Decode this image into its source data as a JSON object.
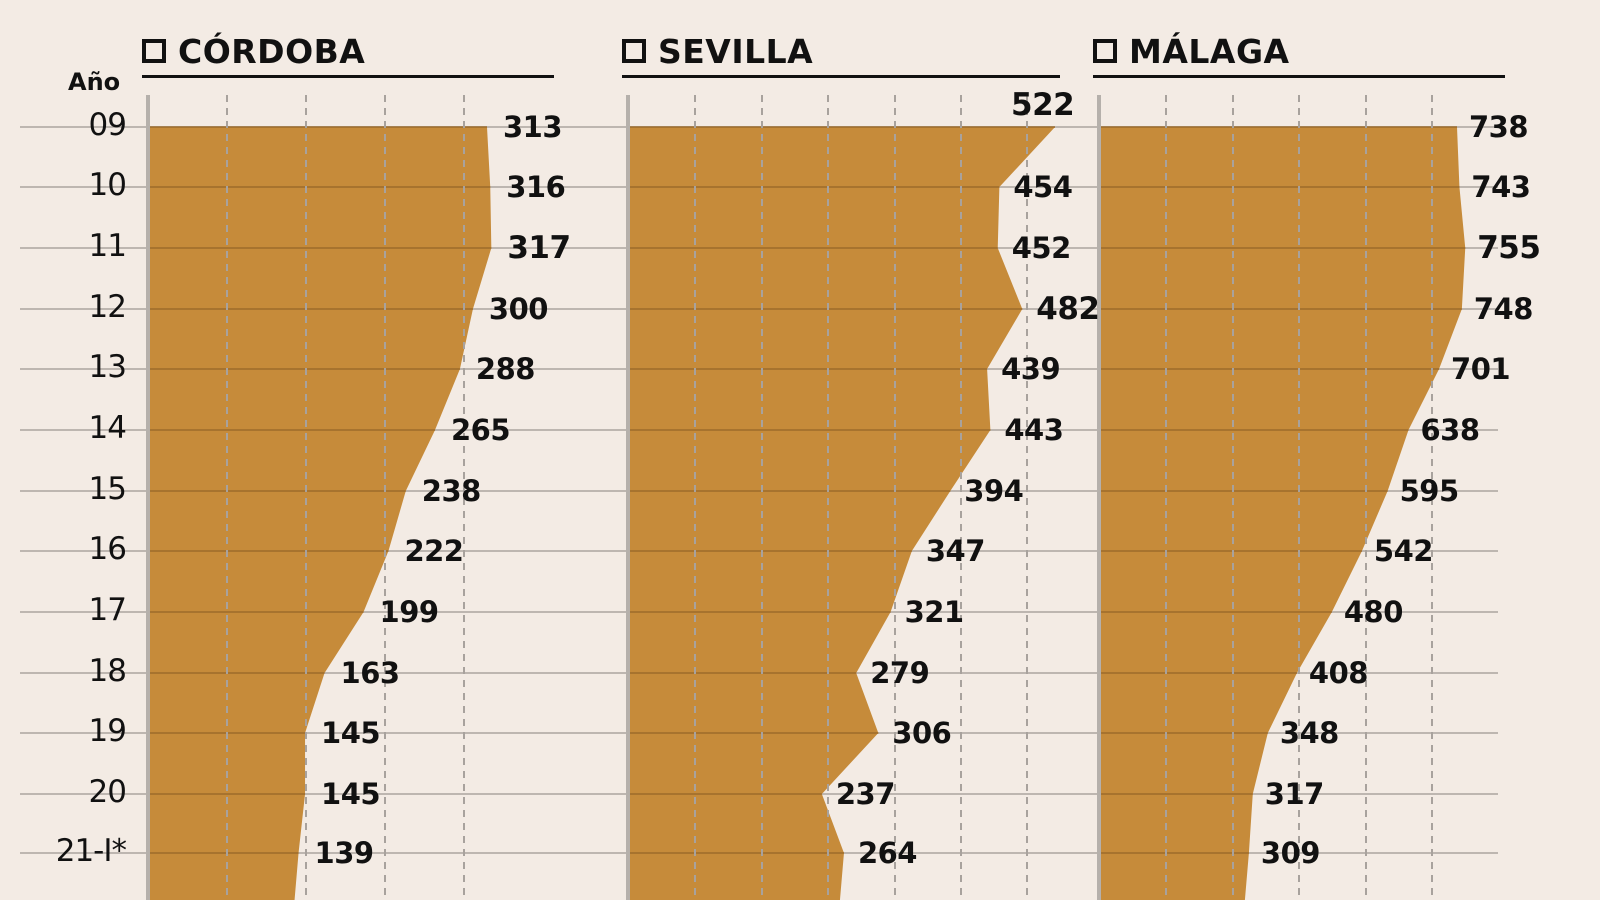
{
  "header": {
    "year_label": "Año"
  },
  "years": [
    "09",
    "10",
    "11",
    "12",
    "13",
    "14",
    "15",
    "16",
    "17",
    "18",
    "19",
    "20",
    "21-I*"
  ],
  "colors": {
    "background": "#f3ebe4",
    "area_fill": "#c68b3a",
    "grid_solid": "#bdb6b0",
    "grid_dashed": "#a8a29d",
    "axis": "#b5b0ab",
    "text": "#111111"
  },
  "chart_data": [
    {
      "type": "area",
      "title": "CÓRDOBA",
      "orientation": "horizontal",
      "categories": [
        "09",
        "10",
        "11",
        "12",
        "13",
        "14",
        "15",
        "16",
        "17",
        "18",
        "19",
        "20",
        "21-I*"
      ],
      "values": [
        313,
        316,
        317,
        300,
        288,
        265,
        238,
        222,
        199,
        163,
        145,
        145,
        139
      ],
      "highlight": [
        2
      ],
      "ylabel": "Año",
      "grid": "dashed-vertical"
    },
    {
      "type": "area",
      "title": "SEVILLA",
      "orientation": "horizontal",
      "categories": [
        "09",
        "10",
        "11",
        "12",
        "13",
        "14",
        "15",
        "16",
        "17",
        "18",
        "19",
        "20",
        "21-I*"
      ],
      "values": [
        522,
        454,
        452,
        482,
        439,
        443,
        394,
        347,
        321,
        279,
        306,
        237,
        264
      ],
      "highlight": [
        0,
        3
      ],
      "ylabel": "Año",
      "grid": "dashed-vertical"
    },
    {
      "type": "area",
      "title": "MÁLAGA",
      "orientation": "horizontal",
      "categories": [
        "09",
        "10",
        "11",
        "12",
        "13",
        "14",
        "15",
        "16",
        "17",
        "18",
        "19",
        "20",
        "21-I*"
      ],
      "values": [
        738,
        743,
        755,
        748,
        701,
        638,
        595,
        542,
        480,
        408,
        348,
        317,
        309
      ],
      "highlight": [
        2
      ],
      "ylabel": "Año",
      "grid": "dashed-vertical"
    }
  ]
}
